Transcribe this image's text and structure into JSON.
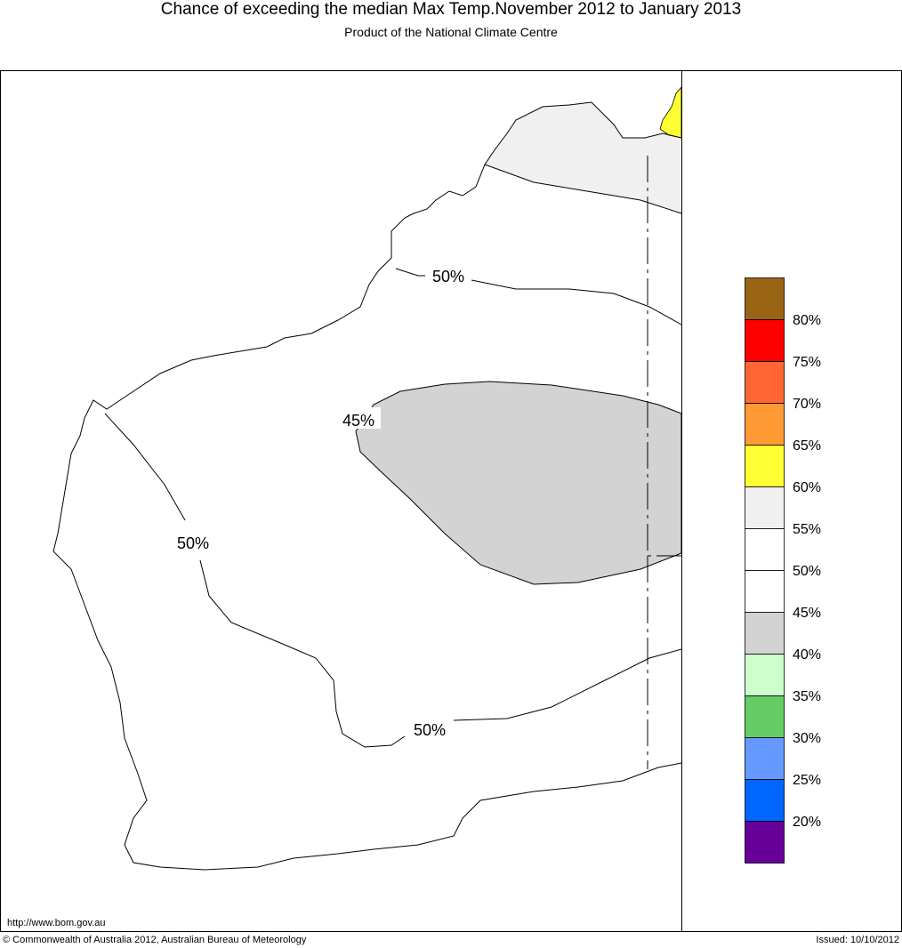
{
  "header": {
    "title": "Chance of exceeding the median Max Temp.November 2012 to January 2013",
    "subtitle": "Product of the National Climate Centre"
  },
  "map": {
    "region": "Western Australia",
    "contour_labels": [
      "50%",
      "45%",
      "50%",
      "50%"
    ],
    "shading": [
      {
        "category": "55-60%",
        "color": "#f0f0f0"
      },
      {
        "category": "40-45%",
        "color": "#d3d3d3"
      },
      {
        "category": "60-65%",
        "color": "#ffff33"
      }
    ],
    "url": "http://www.bom.gov.au"
  },
  "legend": {
    "colors": [
      "#996515",
      "#ff0000",
      "#ff6633",
      "#ff9933",
      "#ffff33",
      "#f0f0f0",
      "#ffffff",
      "#ffffff",
      "#d3d3d3",
      "#ccffcc",
      "#66cc66",
      "#6699ff",
      "#0066ff",
      "#660099"
    ],
    "labels": [
      "80%",
      "75%",
      "70%",
      "65%",
      "60%",
      "55%",
      "50%",
      "45%",
      "40%",
      "35%",
      "30%",
      "25%",
      "20%"
    ]
  },
  "footer": {
    "copyright": "© Commonwealth of Australia 2012, Australian Bureau of Meteorology",
    "issued": "Issued: 10/10/2012"
  }
}
